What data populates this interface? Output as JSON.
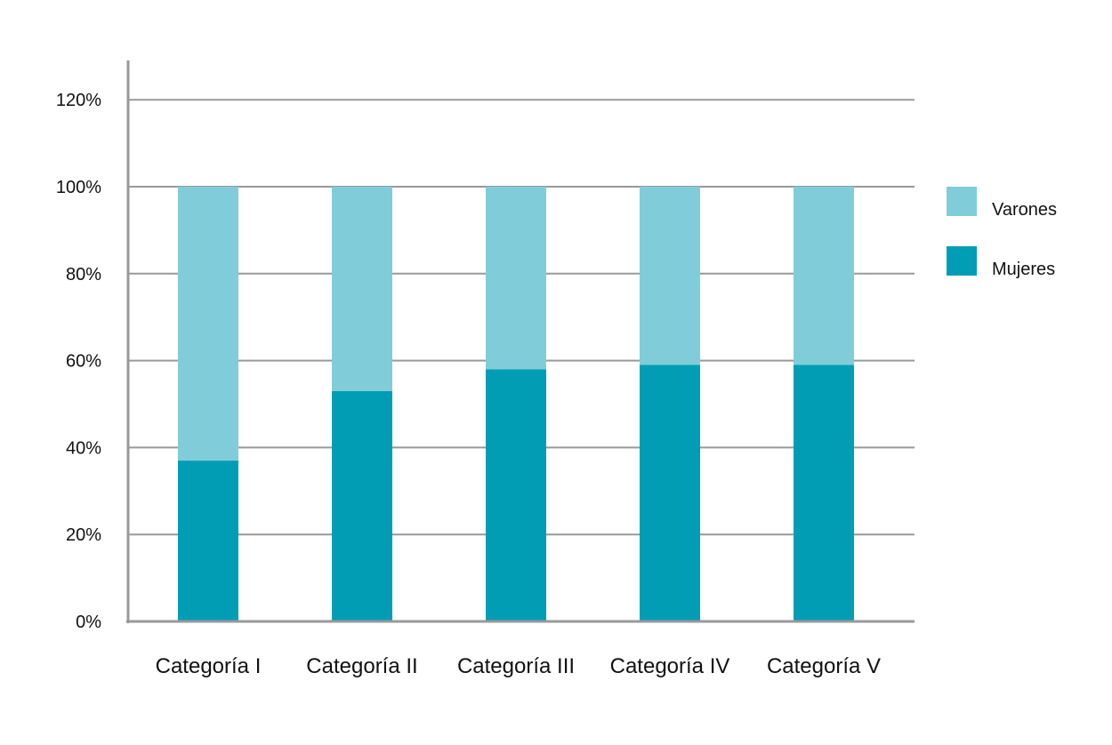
{
  "chart_data": {
    "type": "bar",
    "stacked": true,
    "title": "",
    "xlabel": "",
    "ylabel": "",
    "ylim": [
      0,
      120
    ],
    "yticks": [
      "0%",
      "20%",
      "40%",
      "60%",
      "80%",
      "100%",
      "120%"
    ],
    "ytick_values": [
      0,
      20,
      40,
      60,
      80,
      100,
      120
    ],
    "grid": true,
    "legend_position": "right",
    "categories": [
      "Categoría I",
      "Categoría II",
      "Categoría III",
      "Categoría IV",
      "Categoría V"
    ],
    "series": [
      {
        "name": "Mujeres",
        "color": "#009db5",
        "values": [
          37,
          53,
          58,
          59,
          59
        ]
      },
      {
        "name": "Varones",
        "color": "#80cdd9",
        "values": [
          63,
          47,
          42,
          41,
          41
        ]
      }
    ],
    "legend": [
      "Varones",
      "Mujeres"
    ]
  }
}
